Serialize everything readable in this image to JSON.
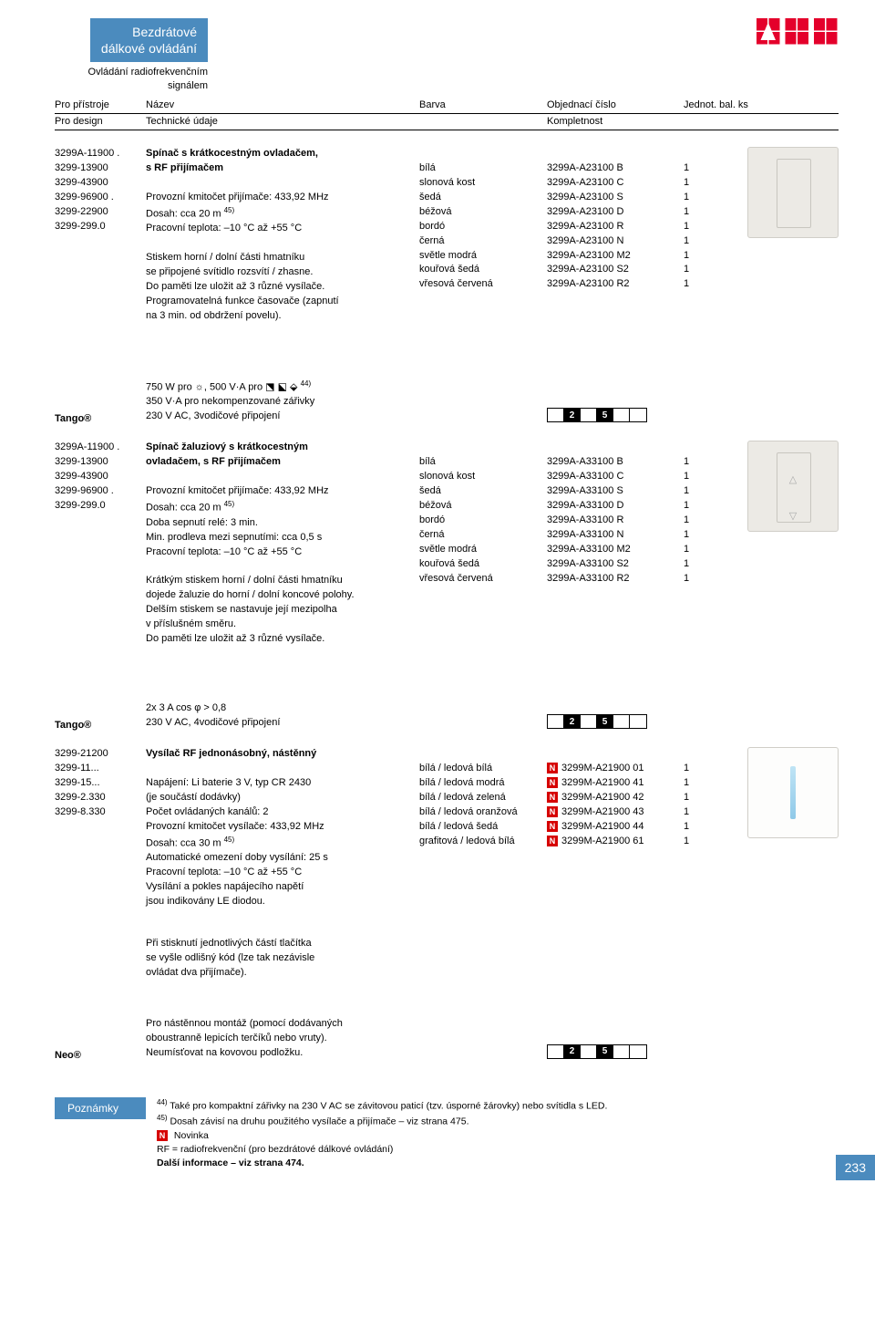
{
  "header": {
    "title_l1": "Bezdrátové",
    "title_l2": "dálkové ovládání",
    "sub_l1": "Ovládání radiofrekvenčním",
    "sub_l2": "signálem",
    "logo_text": "ABB",
    "logo_color": "#e4002b"
  },
  "col_headers": {
    "c1": "Pro přístroje",
    "c2": "Název",
    "c3": "Barva",
    "c4": "Objednací číslo",
    "c5": "Jednot. bal. ks",
    "s1": "Pro design",
    "s2": "Technické údaje",
    "s3": "Kompletnost"
  },
  "sec1": {
    "codes": [
      "3299A-11900 .",
      "3299-13900",
      "3299-43900",
      "3299-96900 .",
      "3299-22900",
      "3299-299.0",
      "",
      "",
      "",
      "",
      ""
    ],
    "name_lines": [
      {
        "t": "Spínač s krátkocestným ovladačem,",
        "b": true
      },
      {
        "t": "s RF přijímačem",
        "b": true
      },
      {
        "t": ""
      },
      {
        "t": "Provozní kmitočet přijímače: 433,92 MHz"
      },
      {
        "t": "Dosah: cca 20 m 45)"
      },
      {
        "t": "Pracovní teplota: –10 °C až +55 °C"
      },
      {
        "t": ""
      },
      {
        "t": "Stiskem horní / dolní části hmatníku"
      },
      {
        "t": "se připojené svítidlo rozsvítí / zhasne."
      },
      {
        "t": "Do paměti lze uložit až 3 různé vysílače."
      },
      {
        "t": "Programovatelná funkce časovače (zapnutí"
      },
      {
        "t": "na 3 min. od obdržení povelu)."
      }
    ],
    "colors": [
      "",
      "bílá",
      "slonová kost",
      "šedá",
      "béžová",
      "bordó",
      "černá",
      "světle modrá",
      "kouřová šedá",
      "vřesová červená"
    ],
    "orders": [
      "",
      "3299A-A23100 B",
      "3299A-A23100 C",
      "3299A-A23100 S",
      "3299A-A23100 D",
      "3299A-A23100 R",
      "3299A-A23100 N",
      "3299A-A23100 M2",
      "3299A-A23100 S2",
      "3299A-A23100 R2"
    ],
    "qtys": [
      "",
      "1",
      "1",
      "1",
      "1",
      "1",
      "1",
      "1",
      "1",
      "1"
    ]
  },
  "range1": {
    "label": "Tango®",
    "text_lines": [
      "750 W pro ☼, 500 V·A pro ⬔ ⬕ ⬙ 44)",
      "350 V·A pro nekompenzované zářivky",
      "230 V AC, 3vodičové připojení"
    ],
    "badges": [
      "",
      "2",
      "",
      "5",
      "",
      ""
    ]
  },
  "sec2": {
    "codes": [
      "3299A-11900 .",
      "3299-13900",
      "3299-43900",
      "3299-96900 .",
      "3299-299.0",
      "",
      "",
      "",
      "",
      "",
      "",
      "",
      "",
      ""
    ],
    "name_lines": [
      {
        "t": "Spínač žaluziový s krátkocestným",
        "b": true
      },
      {
        "t": "ovladačem, s RF přijímačem",
        "b": true
      },
      {
        "t": ""
      },
      {
        "t": "Provozní kmitočet přijímače: 433,92 MHz"
      },
      {
        "t": "Dosah: cca 20 m 45)"
      },
      {
        "t": "Doba sepnutí relé: 3 min."
      },
      {
        "t": "Min. prodleva mezi sepnutími: cca 0,5 s"
      },
      {
        "t": "Pracovní teplota: –10 °C až +55 °C"
      },
      {
        "t": ""
      },
      {
        "t": "Krátkým stiskem horní / dolní části hmatníku"
      },
      {
        "t": "dojede žaluzie do horní / dolní koncové polohy."
      },
      {
        "t": "Delším stiskem se nastavuje její mezipolha"
      },
      {
        "t": "v příslušném směru."
      },
      {
        "t": "Do paměti lze uložit až 3 různé vysílače."
      }
    ],
    "colors": [
      "",
      "bílá",
      "slonová kost",
      "šedá",
      "béžová",
      "bordó",
      "černá",
      "světle modrá",
      "kouřová šedá",
      "vřesová červená"
    ],
    "orders": [
      "",
      "3299A-A33100 B",
      "3299A-A33100 C",
      "3299A-A33100 S",
      "3299A-A33100 D",
      "3299A-A33100 R",
      "3299A-A33100 N",
      "3299A-A33100 M2",
      "3299A-A33100 S2",
      "3299A-A33100 R2"
    ],
    "qtys": [
      "",
      "1",
      "1",
      "1",
      "1",
      "1",
      "1",
      "1",
      "1",
      "1"
    ]
  },
  "range2": {
    "label": "Tango®",
    "text_lines": [
      "2x 3 A cos φ > 0,8",
      "230 V AC, 4vodičové připojení"
    ],
    "badges": [
      "",
      "2",
      "",
      "5",
      "",
      ""
    ]
  },
  "sec3": {
    "codes": [
      "3299-21200",
      "3299-11...",
      "3299-15...",
      "3299-2.330",
      "3299-8.330",
      "",
      "",
      "",
      "",
      "",
      ""
    ],
    "name_lines": [
      {
        "t": "Vysílač RF jednonásobný, nástěnný",
        "b": true
      },
      {
        "t": ""
      },
      {
        "t": "Napájení: Li baterie 3 V, typ CR 2430"
      },
      {
        "t": "(je součástí dodávky)"
      },
      {
        "t": "Počet ovládaných kanálů: 2"
      },
      {
        "t": "Provozní kmitočet vysílače: 433,92 MHz"
      },
      {
        "t": "Dosah: cca 30 m 45)"
      },
      {
        "t": "Automatické omezení doby vysílání: 25 s"
      },
      {
        "t": "Pracovní teplota: –10 °C až +55 °C"
      },
      {
        "t": "Vysílání a pokles napájecího napětí"
      },
      {
        "t": "jsou indikovány LE diodou."
      }
    ],
    "colors": [
      "",
      "bílá / ledová bílá",
      "bílá / ledová modrá",
      "bílá / ledová zelená",
      "bílá / ledová oranžová",
      "bílá / ledová šedá",
      "grafitová / ledová bílá"
    ],
    "orders": [
      "",
      "3299M-A21900 01",
      "3299M-A21900 41",
      "3299M-A21900 42",
      "3299M-A21900 43",
      "3299M-A21900 44",
      "3299M-A21900 61"
    ],
    "order_new": [
      "",
      true,
      true,
      true,
      true,
      true,
      true
    ],
    "qtys": [
      "",
      "1",
      "1",
      "1",
      "1",
      "1",
      "1"
    ]
  },
  "extra1": {
    "lines": [
      "Při stisknutí jednotlivých částí tlačítka",
      "se vyšle odlišný kód (lze tak nezávisle",
      "ovládat dva přijímače)."
    ]
  },
  "extra2": {
    "label": "Neo®",
    "lines": [
      "Pro nástěnnou montáž (pomocí dodávaných",
      "oboustranně lepicích terčíků nebo vruty).",
      "Neumísťovat na kovovou podložku."
    ],
    "badges": [
      "",
      "2",
      "",
      "5",
      "",
      ""
    ]
  },
  "notes": {
    "tab": "Poznámky",
    "lines": [
      "44) Také pro kompaktní zářivky na 230 V AC se závitovou paticí (tzv. úsporné žárovky) nebo svítidla s LED.",
      "45) Dosah závisí na druhu použitého vysílače a přijímače – viz strana 475.",
      "__N__ Novinka",
      "RF = radiofrekvenční (pro bezdrátové dálkové ovládání)",
      "__B__Další informace – viz strana 474."
    ]
  },
  "page_number": "233"
}
